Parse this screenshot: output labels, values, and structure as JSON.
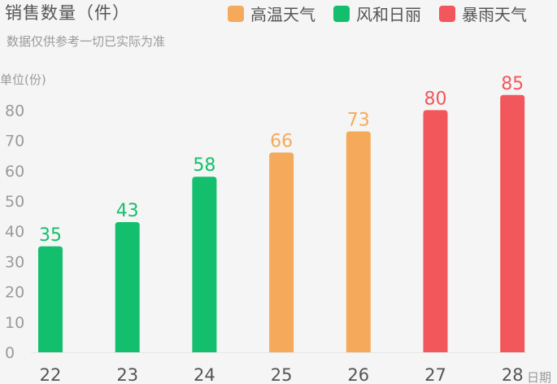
{
  "title": "销售数量（件）",
  "subtitle": "数据仅供参考一切已实际为准",
  "legend": [
    {
      "label": "高温天气",
      "color": "#F5AA5B"
    },
    {
      "label": "风和日丽",
      "color": "#13BF6D"
    },
    {
      "label": "暴雨天气",
      "color": "#F2575B"
    }
  ],
  "chart_data": {
    "type": "bar",
    "categories": [
      "22",
      "23",
      "24",
      "25",
      "26",
      "27",
      "28"
    ],
    "values": [
      35,
      43,
      58,
      66,
      73,
      80,
      85
    ],
    "weather": [
      "风和日丽",
      "风和日丽",
      "风和日丽",
      "高温天气",
      "高温天气",
      "暴雨天气",
      "暴雨天气"
    ],
    "colors": {
      "高温天气": "#F5AA5B",
      "风和日丽": "#13BF6D",
      "暴雨天气": "#F2575B"
    },
    "ylabel": "单位(份)",
    "xlabel": "日期",
    "ylim": [
      0,
      80
    ],
    "yticks": [
      0,
      10,
      20,
      30,
      40,
      50,
      60,
      70,
      80
    ],
    "grid": false
  }
}
